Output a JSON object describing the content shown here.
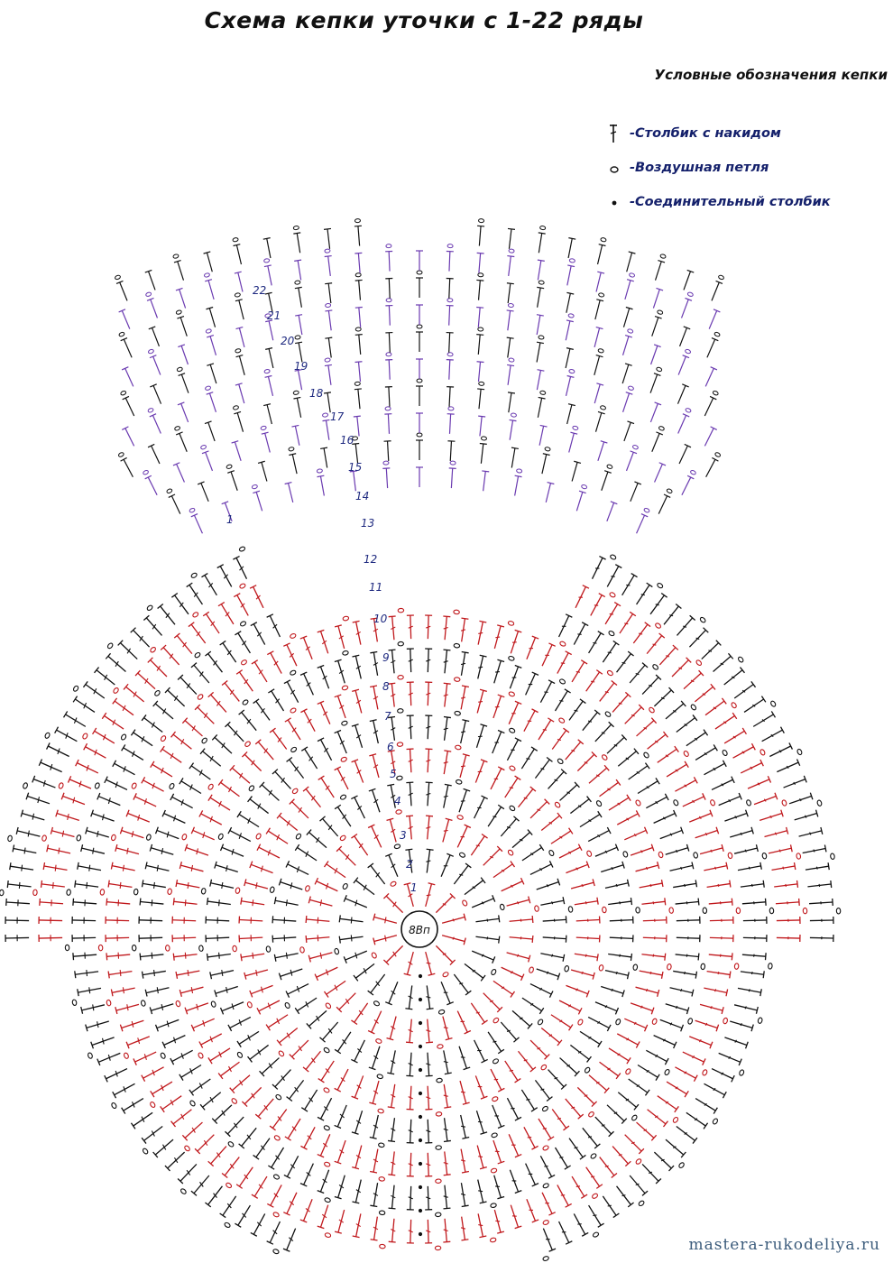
{
  "title": "Схема кепки уточки с 1-22 ряды",
  "legend": {
    "title": "Условные обозначения кепки",
    "items": [
      {
        "symbol": "double-crochet-icon",
        "label": "-Столбик с накидом"
      },
      {
        "symbol": "chain-stitch-icon",
        "label": "-Воздушная петля"
      },
      {
        "symbol": "slip-stitch-icon",
        "label": "-Соединительный столбик"
      }
    ]
  },
  "center_label": "8Вп",
  "crown_row_labels": [
    "1",
    "2",
    "3",
    "4",
    "5",
    "6",
    "7",
    "8",
    "9",
    "10",
    "11",
    "12"
  ],
  "visor_row_labels": [
    "13",
    "14",
    "15",
    "16",
    "17",
    "18",
    "19",
    "20",
    "21",
    "22"
  ],
  "side_label": "1",
  "colors": {
    "red_rows": "#c0181c",
    "black_rows": "#111111",
    "purple_rows": "#6a3ab0",
    "labels": "#1f2a80"
  },
  "watermark": "mastera-rukodeliya.ru"
}
